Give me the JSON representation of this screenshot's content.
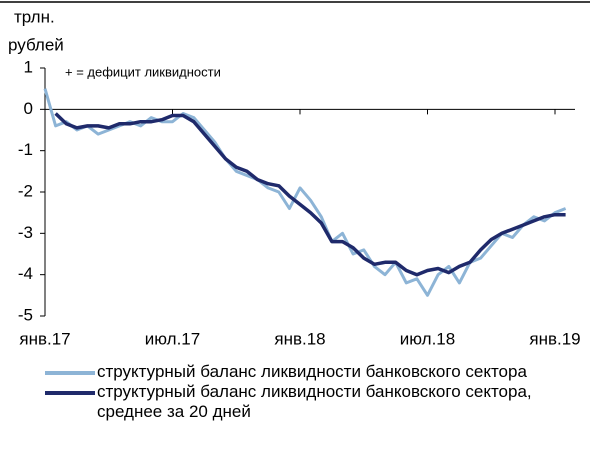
{
  "chart_data": {
    "type": "line",
    "ylabel": [
      "трлн.",
      "рублей"
    ],
    "annotation": "+ = дефицит ликвидности",
    "categories": [
      "янв.17",
      null,
      null,
      null,
      null,
      null,
      null,
      null,
      null,
      null,
      null,
      null,
      "июл.17",
      null,
      null,
      null,
      null,
      null,
      null,
      null,
      null,
      null,
      null,
      null,
      "янв.18",
      null,
      null,
      null,
      null,
      null,
      null,
      null,
      null,
      null,
      null,
      null,
      "июл.18",
      null,
      null,
      null,
      null,
      null,
      null,
      null,
      null,
      null,
      null,
      null,
      "янв.19",
      null
    ],
    "series": [
      {
        "name": "структурный баланс ликвидности банковского сектора",
        "color": "#8db4d6",
        "values": [
          0.5,
          -0.4,
          -0.3,
          -0.5,
          -0.4,
          -0.6,
          -0.5,
          -0.4,
          -0.3,
          -0.4,
          -0.2,
          -0.3,
          -0.3,
          -0.1,
          -0.2,
          -0.5,
          -0.8,
          -1.2,
          -1.5,
          -1.6,
          -1.7,
          -1.9,
          -2.0,
          -2.4,
          -1.9,
          -2.2,
          -2.6,
          -3.2,
          -3.0,
          -3.5,
          -3.4,
          -3.8,
          -4.0,
          -3.7,
          -4.2,
          -4.1,
          -4.5,
          -4.0,
          -3.8,
          -4.2,
          -3.7,
          -3.6,
          -3.3,
          -3.0,
          -3.1,
          -2.8,
          -2.6,
          -2.7,
          -2.5,
          -2.4
        ]
      },
      {
        "name": "структурный баланс ликвидности банковского сектора, среднее за 20 дней",
        "color": "#1f2a6b",
        "values": [
          null,
          -0.1,
          -0.35,
          -0.45,
          -0.4,
          -0.4,
          -0.45,
          -0.35,
          -0.35,
          -0.3,
          -0.3,
          -0.25,
          -0.15,
          -0.15,
          -0.3,
          -0.6,
          -0.9,
          -1.2,
          -1.4,
          -1.5,
          -1.7,
          -1.8,
          -1.85,
          -2.1,
          -2.3,
          -2.5,
          -2.75,
          -3.2,
          -3.2,
          -3.35,
          -3.6,
          -3.75,
          -3.7,
          -3.7,
          -3.9,
          -4.0,
          -3.9,
          -3.85,
          -3.95,
          -3.8,
          -3.7,
          -3.4,
          -3.15,
          -3.0,
          -2.9,
          -2.8,
          -2.7,
          -2.6,
          -2.55,
          -2.55
        ]
      }
    ],
    "ylim": [
      -5,
      1
    ],
    "yticks": [
      1,
      0,
      -1,
      -2,
      -3,
      -4,
      -5
    ]
  }
}
